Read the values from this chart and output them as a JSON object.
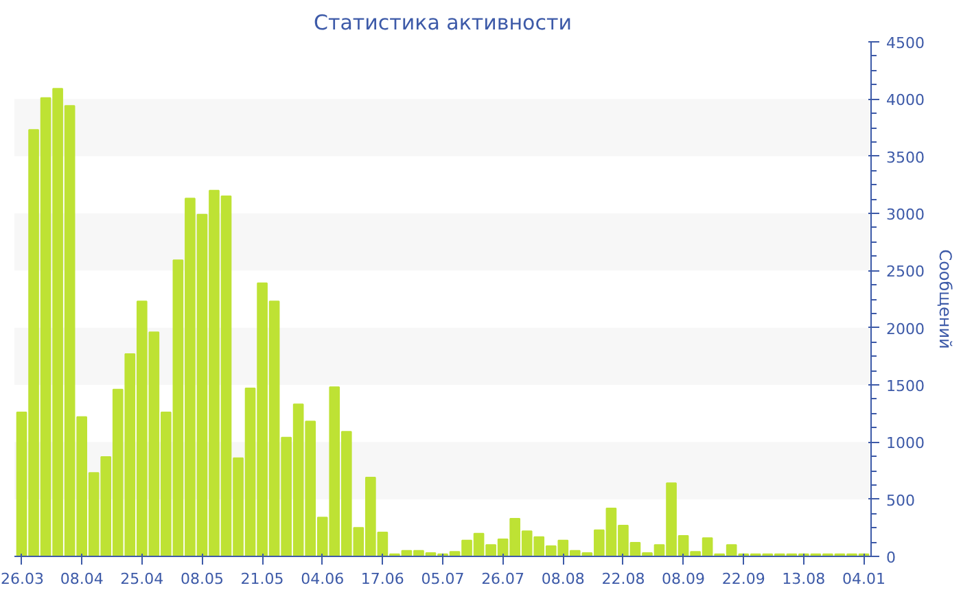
{
  "chart_data": {
    "type": "bar",
    "title": "Статистика активности",
    "ylabel": "Сообщений",
    "categories": [
      "26.03",
      null,
      null,
      null,
      null,
      "08.04",
      null,
      null,
      null,
      null,
      "25.04",
      null,
      null,
      null,
      null,
      "08.05",
      null,
      null,
      null,
      null,
      "21.05",
      null,
      null,
      null,
      null,
      "04.06",
      null,
      null,
      null,
      null,
      "17.06",
      null,
      null,
      null,
      null,
      "05.07",
      null,
      null,
      null,
      null,
      "26.07",
      null,
      null,
      null,
      null,
      "08.08",
      null,
      null,
      null,
      null,
      "22.08",
      null,
      null,
      null,
      null,
      "08.09",
      null,
      null,
      null,
      null,
      "22.09",
      null,
      null,
      null,
      null,
      "13.08",
      null,
      null,
      null,
      null,
      "04.01"
    ],
    "values": [
      1260,
      3730,
      4010,
      4090,
      3940,
      1220,
      730,
      870,
      1460,
      1770,
      2230,
      1960,
      1260,
      2590,
      3130,
      2990,
      3200,
      3150,
      860,
      1470,
      2390,
      2230,
      1040,
      1330,
      1180,
      340,
      1480,
      1090,
      250,
      690,
      210,
      20,
      50,
      50,
      30,
      20,
      40,
      140,
      200,
      100,
      150,
      330,
      220,
      170,
      90,
      140,
      50,
      30,
      230,
      420,
      270,
      120,
      30,
      100,
      640,
      180,
      40,
      160,
      20,
      100,
      20,
      20,
      20,
      20,
      20,
      20,
      20,
      20,
      20,
      20,
      20
    ],
    "color": "#bee234",
    "ylim": [
      0,
      4500
    ],
    "yticks": [
      0,
      500,
      1000,
      1500,
      2000,
      2500,
      3000,
      3500,
      4000,
      4500
    ],
    "bands": [
      {
        "axis": "y",
        "from": 500,
        "to": 1000,
        "color": "#f7f7f7"
      },
      {
        "axis": "y",
        "from": 1500,
        "to": 2000,
        "color": "#f7f7f7"
      },
      {
        "axis": "y",
        "from": 2500,
        "to": 3000,
        "color": "#f7f7f7"
      },
      {
        "axis": "y",
        "from": 3500,
        "to": 4000,
        "color": "#f7f7f7"
      }
    ]
  }
}
